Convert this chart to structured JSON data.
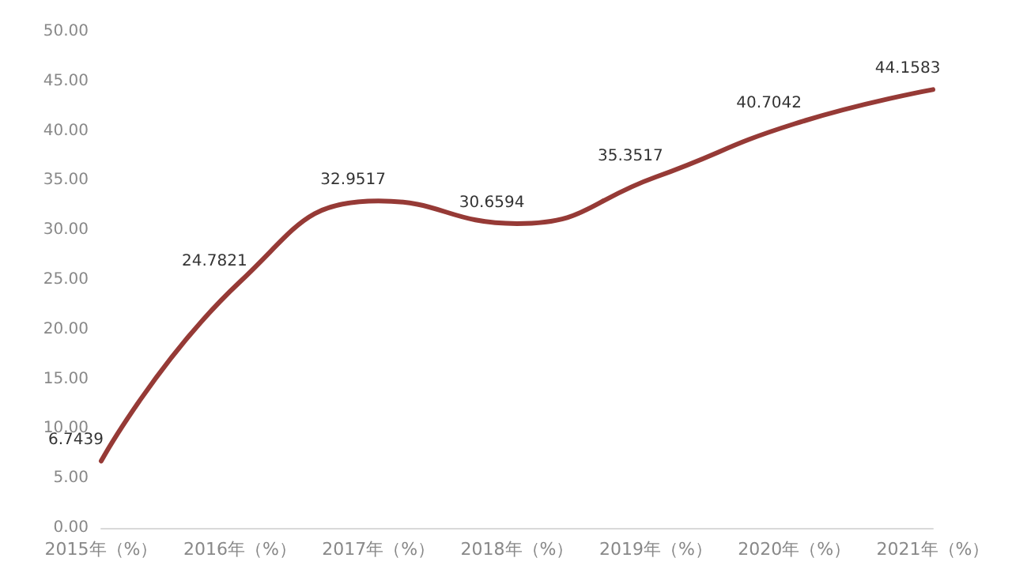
{
  "chart_data": {
    "type": "line",
    "categories": [
      "2015年（%）",
      "2016年（%）",
      "2017年（%）",
      "2018年（%）",
      "2019年（%）",
      "2020年（%）",
      "2021年（%）"
    ],
    "series": [
      {
        "color": "#963a36",
        "values": [
          6.7439,
          24.7821,
          32.9517,
          30.6594,
          35.3517,
          40.7042,
          44.1583
        ]
      }
    ],
    "ylim": [
      0,
      50
    ],
    "yticks": [
      {
        "value": 0,
        "label": "0.00"
      },
      {
        "value": 5,
        "label": "5.00"
      },
      {
        "value": 10,
        "label": "10.00"
      },
      {
        "value": 15,
        "label": "15.00"
      },
      {
        "value": 20,
        "label": "20.00"
      },
      {
        "value": 25,
        "label": "25.00"
      },
      {
        "value": 30,
        "label": "30.00"
      },
      {
        "value": 35,
        "label": "35.00"
      },
      {
        "value": 40,
        "label": "40.00"
      },
      {
        "value": 45,
        "label": "45.00"
      },
      {
        "value": 50,
        "label": "50.00"
      }
    ],
    "data_labels": true,
    "marker": "none",
    "line_style": "solid",
    "grid": false
  }
}
